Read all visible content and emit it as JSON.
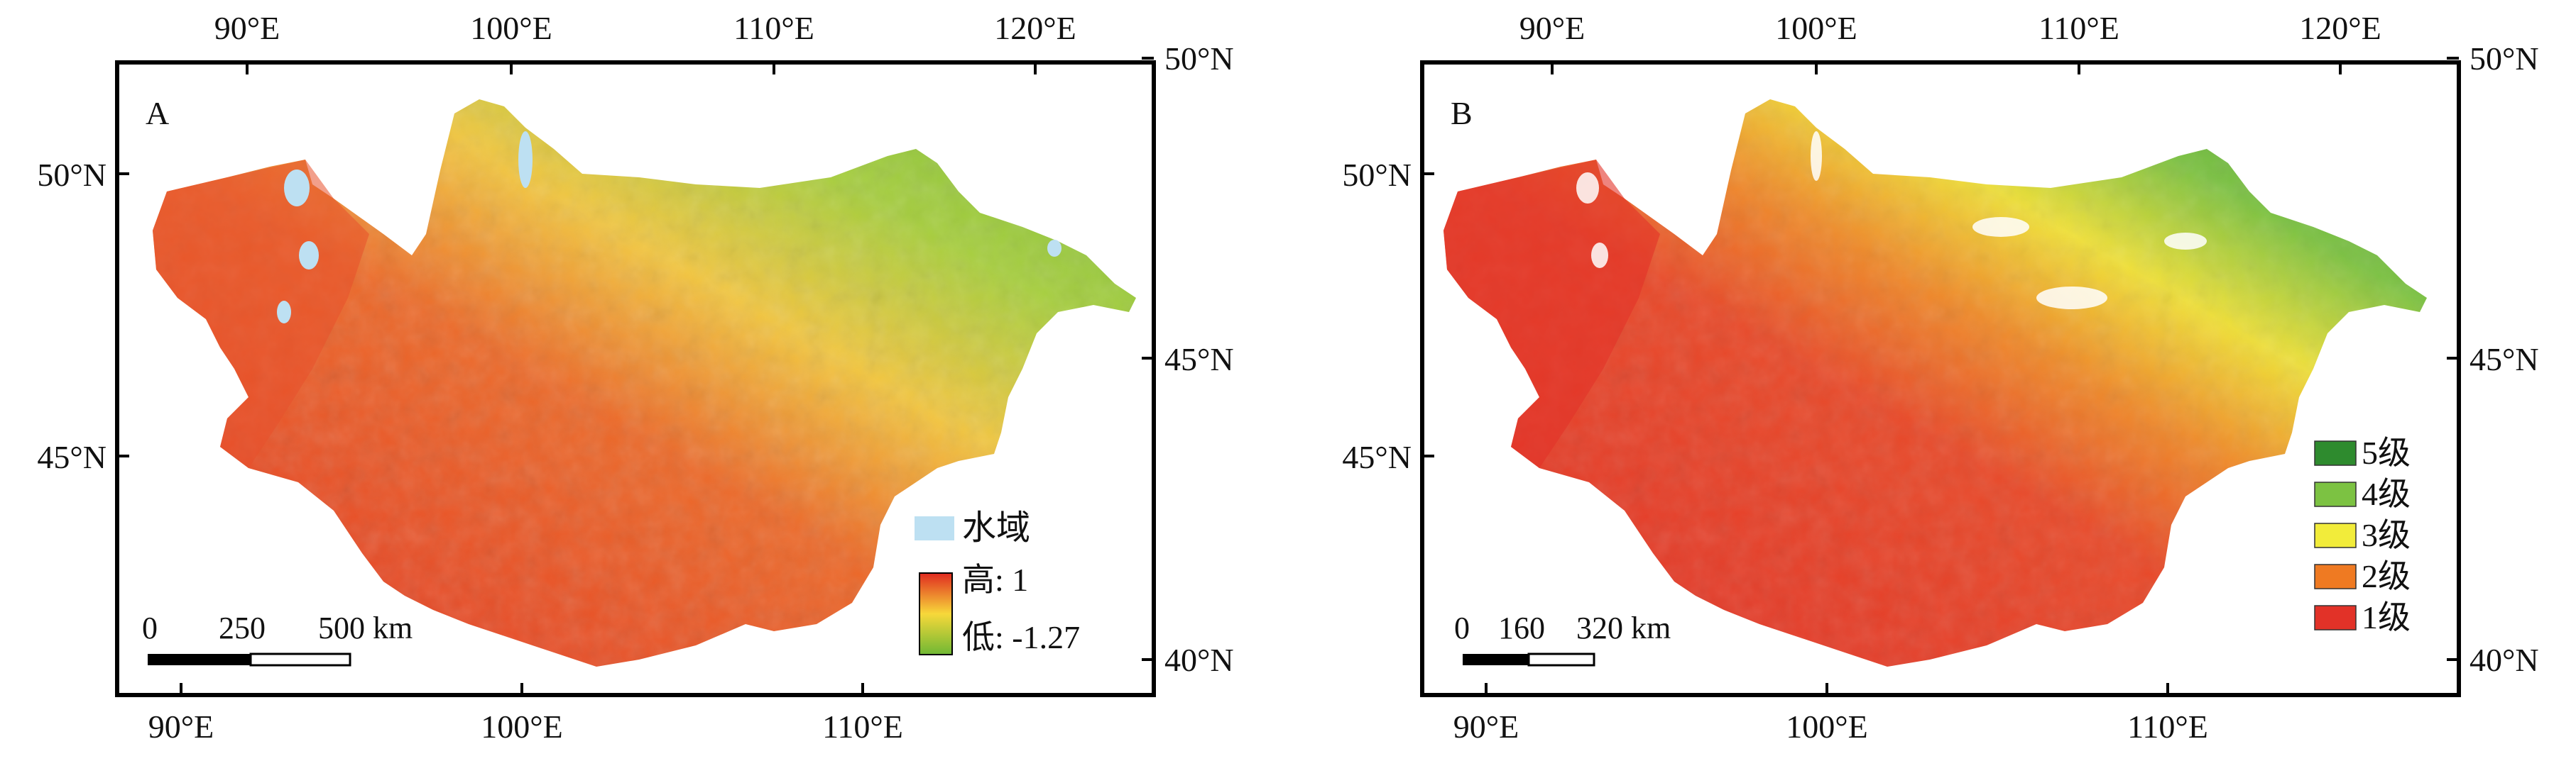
{
  "panels": [
    {
      "id": "A",
      "label": "A",
      "top_lon_ticks": [
        "90°E",
        "100°E",
        "110°E",
        "120°E"
      ],
      "bottom_lon_ticks": [
        "90°E",
        "100°E",
        "110°E"
      ],
      "left_lat_ticks": [
        "50°N",
        "45°N"
      ],
      "right_lat_ticks": [
        "50°N",
        "45°N",
        "40°N"
      ],
      "scalebar": {
        "ticks": [
          "0",
          "250",
          "500 km"
        ]
      },
      "legend": {
        "water": "水域",
        "high": "高: 1",
        "low": "低: -1.27"
      }
    },
    {
      "id": "B",
      "label": "B",
      "top_lon_ticks": [
        "90°E",
        "100°E",
        "110°E",
        "120°E"
      ],
      "bottom_lon_ticks": [
        "90°E",
        "100°E",
        "110°E"
      ],
      "left_lat_ticks": [
        "50°N",
        "45°N"
      ],
      "right_lat_ticks": [
        "50°N",
        "45°N",
        "40°N"
      ],
      "scalebar": {
        "ticks": [
          "0",
          "160",
          "320 km"
        ]
      },
      "legend": {
        "classes": [
          {
            "label": "5级",
            "color": "#2e8b2e"
          },
          {
            "label": "4级",
            "color": "#7cc242"
          },
          {
            "label": "3级",
            "color": "#f2ec3a"
          },
          {
            "label": "2级",
            "color": "#ef7a22"
          },
          {
            "label": "1级",
            "color": "#e23228"
          }
        ]
      }
    }
  ],
  "colors": {
    "water": "#bde0f2",
    "gradient_high": "#e02a20",
    "gradient_mid": "#f7d83a",
    "gradient_low": "#6fb834"
  }
}
